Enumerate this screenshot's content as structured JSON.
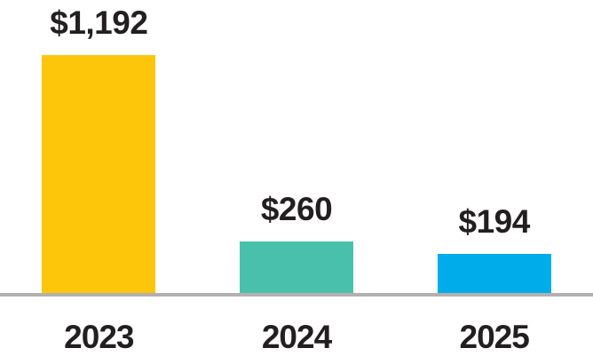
{
  "chart_data": {
    "type": "bar",
    "title": "",
    "xlabel": "",
    "ylabel": "",
    "categories": [
      "2023",
      "2024",
      "2025"
    ],
    "values": [
      1192,
      260,
      194
    ],
    "value_labels": [
      "$1,192",
      "$260",
      "$194"
    ],
    "bar_colors": [
      "#FDC60A",
      "#49C0AB",
      "#00ACEA"
    ],
    "ylim": [
      0,
      1192
    ],
    "grid": false,
    "legend_position": "none",
    "annotations": "value labels above each bar, category years below axis"
  },
  "style": {
    "background_color": "#FFFFFF",
    "axis_line_color": "#B2B1AF",
    "label_text_color": "#231F20"
  }
}
